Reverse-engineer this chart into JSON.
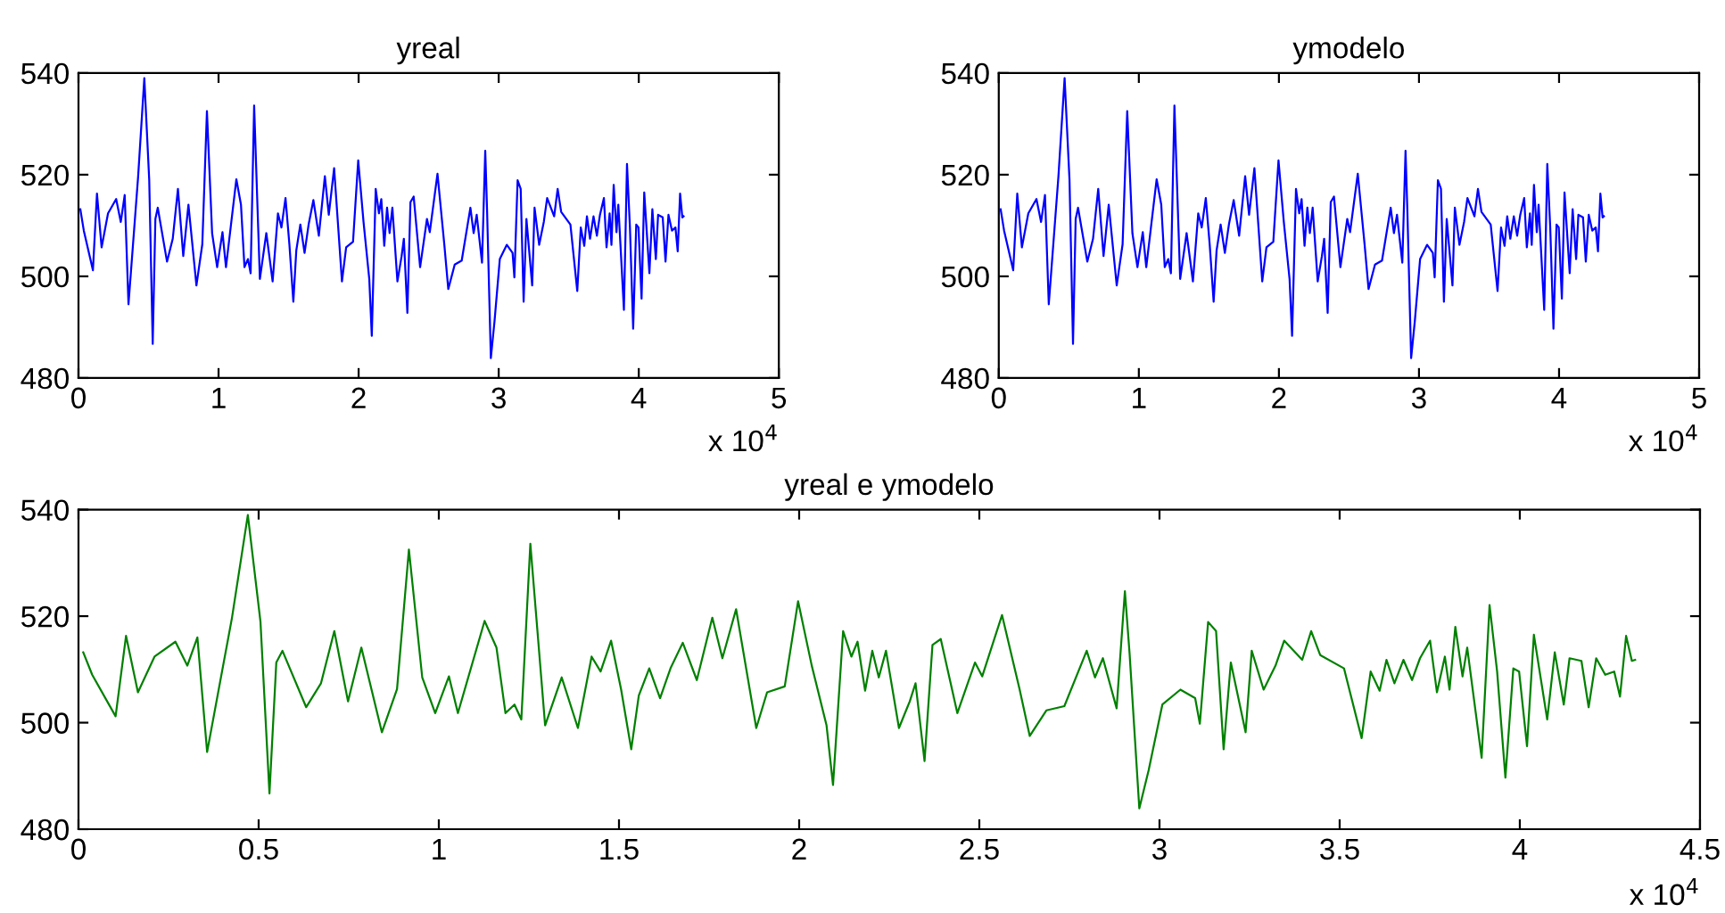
{
  "chart_data": [
    {
      "type": "line",
      "title": "yreal",
      "annotations": [
        "x 10$^{4}$"
      ],
      "grid": false,
      "legend": false,
      "x": [
        0.0132,
        0.038,
        0.103,
        0.132,
        0.165,
        0.211,
        0.269,
        0.302,
        0.33,
        0.357,
        0.426,
        0.47,
        0.505,
        0.53,
        0.549,
        0.566,
        0.632,
        0.673,
        0.71,
        0.748,
        0.785,
        0.842,
        0.884,
        0.917,
        0.954,
        0.99,
        1.028,
        1.053,
        1.127,
        1.16,
        1.185,
        1.21,
        1.229,
        1.254,
        1.295,
        1.341,
        1.386,
        1.424,
        1.449,
        1.478,
        1.506,
        1.534,
        1.555,
        1.584,
        1.614,
        1.643,
        1.677,
        1.716,
        1.759,
        1.787,
        1.825,
        1.881,
        1.911,
        1.96,
        1.997,
        2.035,
        2.076,
        2.094,
        2.122,
        2.145,
        2.162,
        2.183,
        2.203,
        2.221,
        2.241,
        2.277,
        2.307,
        2.323,
        2.348,
        2.37,
        2.393,
        2.439,
        2.488,
        2.508,
        2.563,
        2.612,
        2.64,
        2.686,
        2.736,
        2.798,
        2.821,
        2.843,
        2.881,
        2.904,
        2.917,
        2.944,
        2.97,
        3.008,
        3.058,
        3.099,
        3.112,
        3.135,
        3.157,
        3.178,
        3.198,
        3.239,
        3.256,
        3.289,
        3.322,
        3.346,
        3.396,
        3.421,
        3.446,
        3.512,
        3.561,
        3.586,
        3.611,
        3.63,
        3.652,
        3.677,
        3.701,
        3.723,
        3.751,
        3.77,
        3.792,
        3.805,
        3.821,
        3.841,
        3.854,
        3.894,
        3.916,
        3.937,
        3.96,
        3.982,
        3.998,
        4.02,
        4.039,
        4.076,
        4.097,
        4.122,
        4.138,
        4.171,
        4.191,
        4.212,
        4.237,
        4.262,
        4.278,
        4.295,
        4.311,
        4.32
      ],
      "series": [
        {
          "color": "#0000ff",
          "values": [
            513.2,
            509,
            501.2,
            516.3,
            505.7,
            512.4,
            515.2,
            510.7,
            516,
            494.5,
            519.7,
            539,
            519,
            486.7,
            511.3,
            513.5,
            502.9,
            507.4,
            517.2,
            504,
            514.1,
            498.2,
            506.3,
            532.5,
            508.5,
            501.8,
            508.7,
            501.8,
            519.1,
            514.1,
            501.8,
            503.4,
            500.6,
            533.6,
            499.5,
            508.5,
            499,
            512.4,
            509.6,
            515.4,
            506.2,
            495,
            505.1,
            510.2,
            504.6,
            510.2,
            515,
            508,
            519.7,
            512.1,
            521.3,
            499,
            505.7,
            506.8,
            522.8,
            510.7,
            499.5,
            488.3,
            517.2,
            512.4,
            515.2,
            506,
            513.5,
            508.5,
            513.5,
            499,
            504,
            507.4,
            492.8,
            514.6,
            515.7,
            501.8,
            511.3,
            508.7,
            520.2,
            506.2,
            497.5,
            502.3,
            503.1,
            513.5,
            508.5,
            512.1,
            502.7,
            524.7,
            513,
            483.9,
            491.1,
            503.4,
            506.2,
            504.6,
            499.8,
            518.9,
            517.2,
            495,
            511.3,
            498.2,
            513.5,
            506.2,
            510.7,
            515.4,
            511.8,
            517.2,
            512.7,
            510.2,
            497.1,
            509.6,
            506,
            511.8,
            507.4,
            511.8,
            508,
            512.1,
            515.4,
            505.7,
            512.4,
            506.2,
            518,
            508.7,
            514.1,
            493.4,
            522.1,
            509.6,
            489.7,
            510.2,
            509.6,
            495.6,
            516.5,
            500.6,
            513.2,
            503.4,
            512.1,
            511.6,
            502.9,
            512.1,
            509,
            509.6,
            504.9,
            516.3,
            511.6,
            511.8
          ]
        }
      ],
      "xlim": [
        0,
        5
      ],
      "xticks": [
        0,
        1,
        2,
        3,
        4,
        5
      ],
      "ylim": [
        480,
        540
      ],
      "yticks": [
        480,
        500,
        520,
        540
      ]
    },
    {
      "type": "line",
      "title": "ymodelo",
      "annotations": [
        "x 10$^{4}$"
      ],
      "grid": false,
      "legend": false,
      "x": [
        0.0132,
        0.038,
        0.103,
        0.132,
        0.165,
        0.211,
        0.269,
        0.302,
        0.33,
        0.357,
        0.426,
        0.47,
        0.505,
        0.53,
        0.549,
        0.566,
        0.632,
        0.673,
        0.71,
        0.748,
        0.785,
        0.842,
        0.884,
        0.917,
        0.954,
        0.99,
        1.028,
        1.053,
        1.127,
        1.16,
        1.185,
        1.21,
        1.229,
        1.254,
        1.295,
        1.341,
        1.386,
        1.424,
        1.449,
        1.478,
        1.506,
        1.534,
        1.555,
        1.584,
        1.614,
        1.643,
        1.677,
        1.716,
        1.759,
        1.787,
        1.825,
        1.881,
        1.911,
        1.96,
        1.997,
        2.035,
        2.076,
        2.094,
        2.122,
        2.145,
        2.162,
        2.183,
        2.203,
        2.221,
        2.241,
        2.277,
        2.307,
        2.323,
        2.348,
        2.37,
        2.393,
        2.439,
        2.488,
        2.508,
        2.563,
        2.612,
        2.64,
        2.686,
        2.736,
        2.798,
        2.821,
        2.843,
        2.881,
        2.904,
        2.917,
        2.944,
        2.97,
        3.008,
        3.058,
        3.099,
        3.112,
        3.135,
        3.157,
        3.178,
        3.198,
        3.239,
        3.256,
        3.289,
        3.322,
        3.346,
        3.396,
        3.421,
        3.446,
        3.512,
        3.561,
        3.586,
        3.611,
        3.63,
        3.652,
        3.677,
        3.701,
        3.723,
        3.751,
        3.77,
        3.792,
        3.805,
        3.821,
        3.841,
        3.854,
        3.894,
        3.916,
        3.937,
        3.96,
        3.982,
        3.998,
        4.02,
        4.039,
        4.076,
        4.097,
        4.122,
        4.138,
        4.171,
        4.191,
        4.212,
        4.237,
        4.262,
        4.278,
        4.295,
        4.311,
        4.32
      ],
      "series": [
        {
          "color": "#0000ff",
          "values": [
            513.2,
            509,
            501.2,
            516.3,
            505.7,
            512.4,
            515.2,
            510.7,
            516,
            494.5,
            519.7,
            539,
            519,
            486.7,
            511.3,
            513.5,
            502.9,
            507.4,
            517.2,
            504,
            514.1,
            498.2,
            506.3,
            532.5,
            508.5,
            501.8,
            508.7,
            501.8,
            519.1,
            514.1,
            501.8,
            503.4,
            500.6,
            533.6,
            499.5,
            508.5,
            499,
            512.4,
            509.6,
            515.4,
            506.2,
            495,
            505.1,
            510.2,
            504.6,
            510.2,
            515,
            508,
            519.7,
            512.1,
            521.3,
            499,
            505.7,
            506.8,
            522.8,
            510.7,
            499.5,
            488.3,
            517.2,
            512.4,
            515.2,
            506,
            513.5,
            508.5,
            513.5,
            499,
            504,
            507.4,
            492.8,
            514.6,
            515.7,
            501.8,
            511.3,
            508.7,
            520.2,
            506.2,
            497.5,
            502.3,
            503.1,
            513.5,
            508.5,
            512.1,
            502.7,
            524.7,
            513,
            483.9,
            491.1,
            503.4,
            506.2,
            504.6,
            499.8,
            518.9,
            517.2,
            495,
            511.3,
            498.2,
            513.5,
            506.2,
            510.7,
            515.4,
            511.8,
            517.2,
            512.7,
            510.2,
            497.1,
            509.6,
            506,
            511.8,
            507.4,
            511.8,
            508,
            512.1,
            515.4,
            505.7,
            512.4,
            506.2,
            518,
            508.7,
            514.1,
            493.4,
            522.1,
            509.6,
            489.7,
            510.2,
            509.6,
            495.6,
            516.5,
            500.6,
            513.2,
            503.4,
            512.1,
            511.6,
            502.9,
            512.1,
            509,
            509.6,
            504.9,
            516.3,
            511.6,
            511.8
          ]
        }
      ],
      "xlim": [
        0,
        5
      ],
      "xticks": [
        0,
        1,
        2,
        3,
        4,
        5
      ],
      "ylim": [
        480,
        540
      ],
      "yticks": [
        480,
        500,
        520,
        540
      ]
    },
    {
      "type": "line",
      "title": "yreal e ymodelo",
      "annotations": [
        "x 10$^{4}$"
      ],
      "grid": false,
      "legend": false,
      "x": [
        0.0132,
        0.038,
        0.103,
        0.132,
        0.165,
        0.211,
        0.269,
        0.302,
        0.33,
        0.357,
        0.426,
        0.47,
        0.505,
        0.53,
        0.549,
        0.566,
        0.632,
        0.673,
        0.71,
        0.748,
        0.785,
        0.842,
        0.884,
        0.917,
        0.954,
        0.99,
        1.028,
        1.053,
        1.127,
        1.16,
        1.185,
        1.21,
        1.229,
        1.254,
        1.295,
        1.341,
        1.386,
        1.424,
        1.449,
        1.478,
        1.506,
        1.534,
        1.555,
        1.584,
        1.614,
        1.643,
        1.677,
        1.716,
        1.759,
        1.787,
        1.825,
        1.881,
        1.911,
        1.96,
        1.997,
        2.035,
        2.076,
        2.094,
        2.122,
        2.145,
        2.162,
        2.183,
        2.203,
        2.221,
        2.241,
        2.277,
        2.307,
        2.323,
        2.348,
        2.37,
        2.393,
        2.439,
        2.488,
        2.508,
        2.563,
        2.612,
        2.64,
        2.686,
        2.736,
        2.798,
        2.821,
        2.843,
        2.881,
        2.904,
        2.917,
        2.944,
        2.97,
        3.008,
        3.058,
        3.099,
        3.112,
        3.135,
        3.157,
        3.178,
        3.198,
        3.239,
        3.256,
        3.289,
        3.322,
        3.346,
        3.396,
        3.421,
        3.446,
        3.512,
        3.561,
        3.586,
        3.611,
        3.63,
        3.652,
        3.677,
        3.701,
        3.723,
        3.751,
        3.77,
        3.792,
        3.805,
        3.821,
        3.841,
        3.854,
        3.894,
        3.916,
        3.937,
        3.96,
        3.982,
        3.998,
        4.02,
        4.039,
        4.076,
        4.097,
        4.122,
        4.138,
        4.171,
        4.191,
        4.212,
        4.237,
        4.262,
        4.278,
        4.295,
        4.311,
        4.32
      ],
      "series": [
        {
          "color": "#008000",
          "values": [
            513.2,
            509,
            501.2,
            516.3,
            505.7,
            512.4,
            515.2,
            510.7,
            516,
            494.5,
            519.7,
            539,
            519,
            486.7,
            511.3,
            513.5,
            502.9,
            507.4,
            517.2,
            504,
            514.1,
            498.2,
            506.3,
            532.5,
            508.5,
            501.8,
            508.7,
            501.8,
            519.1,
            514.1,
            501.8,
            503.4,
            500.6,
            533.6,
            499.5,
            508.5,
            499,
            512.4,
            509.6,
            515.4,
            506.2,
            495,
            505.1,
            510.2,
            504.6,
            510.2,
            515,
            508,
            519.7,
            512.1,
            521.3,
            499,
            505.7,
            506.8,
            522.8,
            510.7,
            499.5,
            488.3,
            517.2,
            512.4,
            515.2,
            506,
            513.5,
            508.5,
            513.5,
            499,
            504,
            507.4,
            492.8,
            514.6,
            515.7,
            501.8,
            511.3,
            508.7,
            520.2,
            506.2,
            497.5,
            502.3,
            503.1,
            513.5,
            508.5,
            512.1,
            502.7,
            524.7,
            513,
            483.9,
            491.1,
            503.4,
            506.2,
            504.6,
            499.8,
            518.9,
            517.2,
            495,
            511.3,
            498.2,
            513.5,
            506.2,
            510.7,
            515.4,
            511.8,
            517.2,
            512.7,
            510.2,
            497.1,
            509.6,
            506,
            511.8,
            507.4,
            511.8,
            508,
            512.1,
            515.4,
            505.7,
            512.4,
            506.2,
            518,
            508.7,
            514.1,
            493.4,
            522.1,
            509.6,
            489.7,
            510.2,
            509.6,
            495.6,
            516.5,
            500.6,
            513.2,
            503.4,
            512.1,
            511.6,
            502.9,
            512.1,
            509,
            509.6,
            504.9,
            516.3,
            511.6,
            511.8
          ]
        }
      ],
      "xlim": [
        0,
        4.5
      ],
      "xticks": [
        0,
        0.5,
        1,
        1.5,
        2,
        2.5,
        3,
        3.5,
        4,
        4.5
      ],
      "ylim": [
        480,
        540
      ],
      "yticks": [
        480,
        500,
        520,
        540
      ]
    }
  ]
}
